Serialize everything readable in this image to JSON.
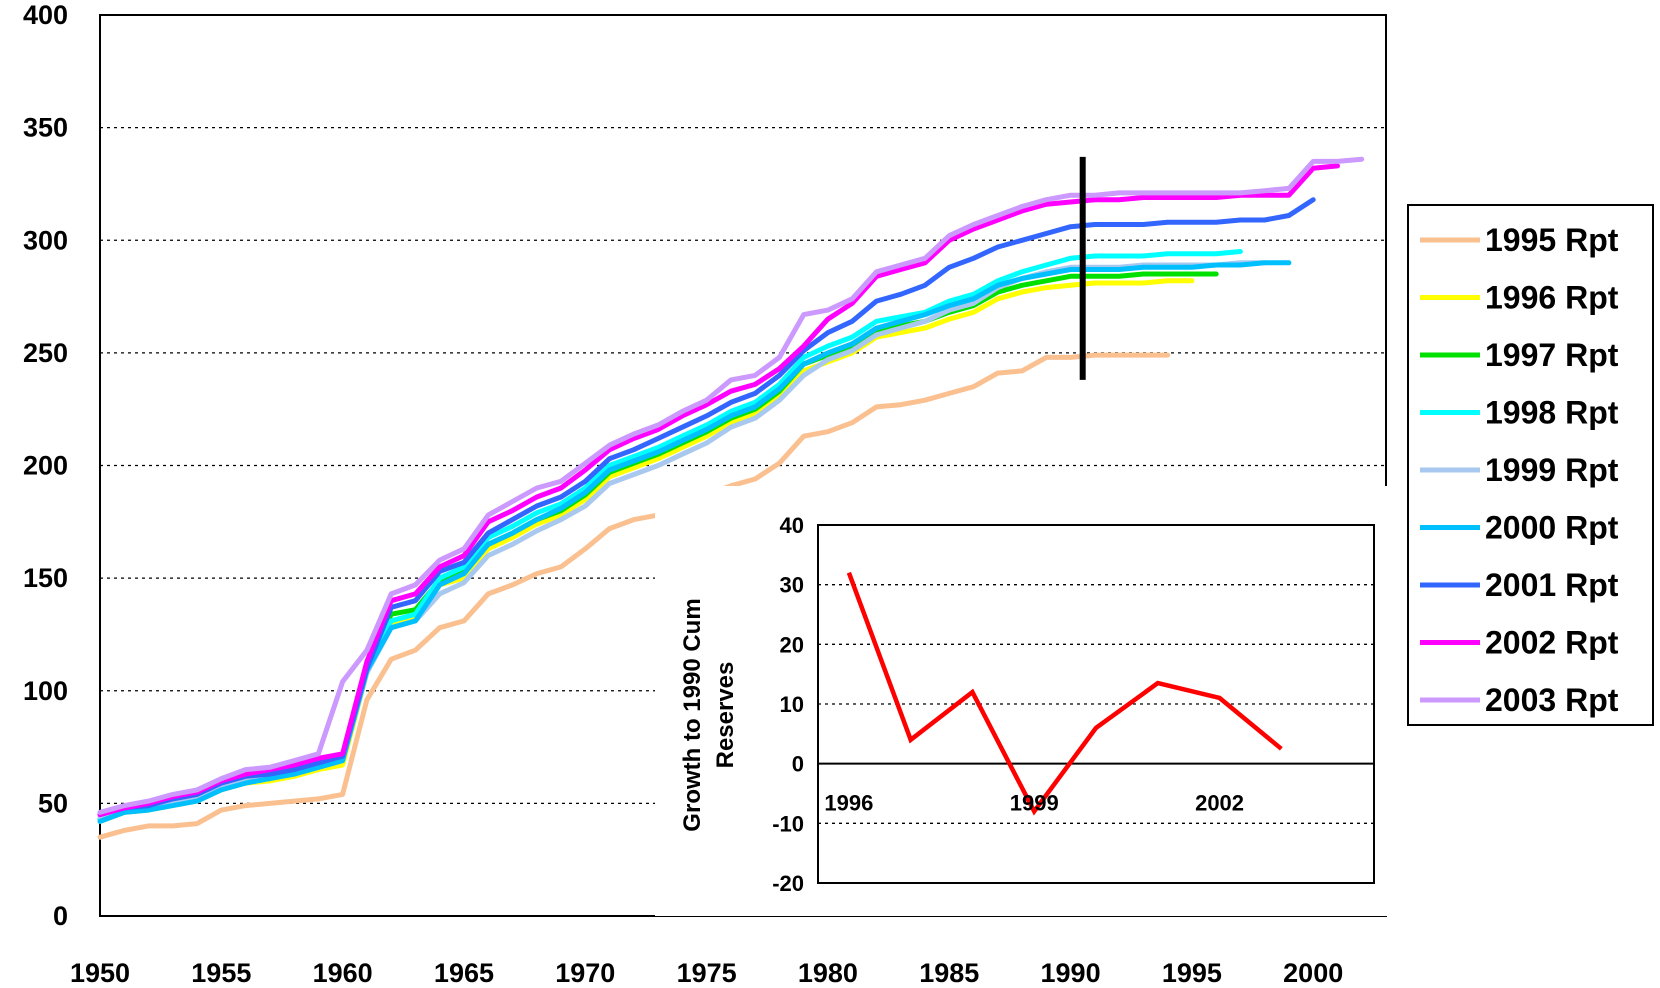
{
  "chart_data": [
    {
      "type": "line",
      "title": "",
      "xlabel": "",
      "ylabel": "",
      "xlim": [
        1950,
        2003
      ],
      "ylim": [
        0,
        400
      ],
      "x_ticks": [
        "1950",
        "1955",
        "1960",
        "1965",
        "1970",
        "1975",
        "1980",
        "1985",
        "1990",
        "1995",
        "2000"
      ],
      "y_ticks": [
        "0",
        "50",
        "100",
        "150",
        "200",
        "250",
        "300",
        "350",
        "400"
      ],
      "grid": "horizontal dotted",
      "legend_position": "right",
      "marker_line_x": 1990.5,
      "marker_line_range": [
        238,
        337
      ],
      "series": [
        {
          "name": "1995 Rpt",
          "color": "#FAC090",
          "x": [
            1950,
            1951,
            1952,
            1953,
            1954,
            1955,
            1956,
            1957,
            1958,
            1959,
            1960,
            1961,
            1962,
            1963,
            1964,
            1965,
            1966,
            1967,
            1968,
            1969,
            1970,
            1971,
            1972,
            1973,
            1974,
            1975,
            1976,
            1977,
            1978,
            1979,
            1980,
            1981,
            1982,
            1983,
            1984,
            1985,
            1986,
            1987,
            1988,
            1989,
            1990,
            1991,
            1992,
            1993,
            1994
          ],
          "y": [
            35,
            38,
            40,
            40,
            41,
            47,
            49,
            50,
            51,
            52,
            54,
            96,
            114,
            118,
            128,
            131,
            143,
            147,
            152,
            155,
            163,
            172,
            176,
            178,
            182,
            187,
            191,
            194,
            201,
            213,
            215,
            219,
            226,
            227,
            229,
            232,
            235,
            241,
            242,
            248,
            248,
            249,
            249,
            249,
            249
          ]
        },
        {
          "name": "1996 Rpt",
          "color": "#FFFF00",
          "x": [
            1950,
            1951,
            1952,
            1953,
            1954,
            1955,
            1956,
            1957,
            1958,
            1959,
            1960,
            1961,
            1962,
            1963,
            1964,
            1965,
            1966,
            1967,
            1968,
            1969,
            1970,
            1971,
            1972,
            1973,
            1974,
            1975,
            1976,
            1977,
            1978,
            1979,
            1980,
            1981,
            1982,
            1983,
            1984,
            1985,
            1986,
            1987,
            1988,
            1989,
            1990,
            1991,
            1992,
            1993,
            1994,
            1995
          ],
          "y": [
            42,
            46,
            47,
            49,
            51,
            56,
            59,
            60,
            62,
            65,
            67,
            108,
            130,
            133,
            147,
            150,
            163,
            168,
            174,
            178,
            185,
            195,
            199,
            203,
            208,
            213,
            219,
            223,
            231,
            242,
            246,
            250,
            257,
            259,
            261,
            265,
            268,
            274,
            277,
            279,
            280,
            281,
            281,
            281,
            282,
            282
          ]
        },
        {
          "name": "1997 Rpt",
          "color": "#00E000",
          "x": [
            1950,
            1951,
            1952,
            1953,
            1954,
            1955,
            1956,
            1957,
            1958,
            1959,
            1960,
            1961,
            1962,
            1963,
            1964,
            1965,
            1966,
            1967,
            1968,
            1969,
            1970,
            1971,
            1972,
            1973,
            1974,
            1975,
            1976,
            1977,
            1978,
            1979,
            1980,
            1981,
            1982,
            1983,
            1984,
            1985,
            1986,
            1987,
            1988,
            1989,
            1990,
            1991,
            1992,
            1993,
            1994,
            1995,
            1996
          ],
          "y": [
            43,
            47,
            48,
            50,
            52,
            57,
            60,
            61,
            63,
            66,
            69,
            110,
            134,
            136,
            149,
            153,
            165,
            170,
            176,
            180,
            187,
            197,
            201,
            205,
            210,
            215,
            221,
            225,
            233,
            245,
            249,
            253,
            260,
            262,
            264,
            268,
            271,
            277,
            280,
            282,
            284,
            284,
            284,
            285,
            285,
            285,
            285
          ]
        },
        {
          "name": "1998 Rpt",
          "color": "#00FFFF",
          "x": [
            1950,
            1951,
            1952,
            1953,
            1954,
            1955,
            1956,
            1957,
            1958,
            1959,
            1960,
            1961,
            1962,
            1963,
            1964,
            1965,
            1966,
            1967,
            1968,
            1969,
            1970,
            1971,
            1972,
            1973,
            1974,
            1975,
            1976,
            1977,
            1978,
            1979,
            1980,
            1981,
            1982,
            1983,
            1984,
            1985,
            1986,
            1987,
            1988,
            1989,
            1990,
            1991,
            1992,
            1993,
            1994,
            1995,
            1996,
            1997
          ],
          "y": [
            43,
            47,
            48,
            51,
            53,
            58,
            61,
            62,
            64,
            67,
            71,
            111,
            131,
            134,
            150,
            155,
            168,
            173,
            179,
            183,
            190,
            200,
            204,
            208,
            213,
            218,
            224,
            228,
            236,
            248,
            253,
            257,
            264,
            266,
            268,
            273,
            276,
            282,
            286,
            289,
            292,
            293,
            293,
            293,
            294,
            294,
            294,
            295
          ]
        },
        {
          "name": "1999 Rpt",
          "color": "#A8C8F0",
          "x": [
            1950,
            1951,
            1952,
            1953,
            1954,
            1955,
            1956,
            1957,
            1958,
            1959,
            1960,
            1961,
            1962,
            1963,
            1964,
            1965,
            1966,
            1967,
            1968,
            1969,
            1970,
            1971,
            1972,
            1973,
            1974,
            1975,
            1976,
            1977,
            1978,
            1979,
            1980,
            1981,
            1982,
            1983,
            1984,
            1985,
            1986,
            1987,
            1988,
            1989,
            1990,
            1991,
            1992,
            1993,
            1994,
            1995,
            1996,
            1997,
            1998
          ],
          "y": [
            44,
            47,
            48,
            50,
            52,
            57,
            60,
            61,
            63,
            66,
            69,
            108,
            128,
            131,
            143,
            148,
            160,
            165,
            171,
            176,
            182,
            192,
            196,
            200,
            205,
            210,
            217,
            221,
            229,
            240,
            247,
            251,
            258,
            261,
            264,
            269,
            272,
            279,
            283,
            286,
            288,
            288,
            288,
            289,
            289,
            289,
            289,
            290,
            290
          ]
        },
        {
          "name": "2000 Rpt",
          "color": "#00BFFF",
          "x": [
            1950,
            1951,
            1952,
            1953,
            1954,
            1955,
            1956,
            1957,
            1958,
            1959,
            1960,
            1961,
            1962,
            1963,
            1964,
            1965,
            1966,
            1967,
            1968,
            1969,
            1970,
            1971,
            1972,
            1973,
            1974,
            1975,
            1976,
            1977,
            1978,
            1979,
            1980,
            1981,
            1982,
            1983,
            1984,
            1985,
            1986,
            1987,
            1988,
            1989,
            1990,
            1991,
            1992,
            1993,
            1994,
            1995,
            1996,
            1997,
            1998,
            1999
          ],
          "y": [
            42,
            46,
            47,
            49,
            51,
            56,
            59,
            61,
            63,
            66,
            69,
            109,
            128,
            131,
            147,
            152,
            165,
            170,
            176,
            181,
            188,
            198,
            202,
            206,
            211,
            216,
            222,
            226,
            234,
            245,
            250,
            254,
            261,
            264,
            267,
            271,
            274,
            280,
            283,
            285,
            287,
            287,
            287,
            288,
            288,
            288,
            289,
            289,
            290,
            290
          ]
        },
        {
          "name": "2001 Rpt",
          "color": "#3366FF",
          "x": [
            1950,
            1951,
            1952,
            1953,
            1954,
            1955,
            1956,
            1957,
            1958,
            1959,
            1960,
            1961,
            1962,
            1963,
            1964,
            1965,
            1966,
            1967,
            1968,
            1969,
            1970,
            1971,
            1972,
            1973,
            1974,
            1975,
            1976,
            1977,
            1978,
            1979,
            1980,
            1981,
            1982,
            1983,
            1984,
            1985,
            1986,
            1987,
            1988,
            1989,
            1990,
            1991,
            1992,
            1993,
            1994,
            1995,
            1996,
            1997,
            1998,
            1999,
            2000
          ],
          "y": [
            45,
            48,
            49,
            52,
            54,
            59,
            62,
            63,
            65,
            68,
            71,
            110,
            137,
            140,
            153,
            157,
            170,
            176,
            182,
            186,
            193,
            203,
            207,
            212,
            217,
            222,
            228,
            232,
            240,
            251,
            259,
            264,
            273,
            276,
            280,
            288,
            292,
            297,
            300,
            303,
            306,
            307,
            307,
            307,
            308,
            308,
            308,
            309,
            309,
            311,
            318
          ]
        },
        {
          "name": "2002 Rpt",
          "color": "#FF00FF",
          "x": [
            1950,
            1951,
            1952,
            1953,
            1954,
            1955,
            1956,
            1957,
            1958,
            1959,
            1960,
            1961,
            1962,
            1963,
            1964,
            1965,
            1966,
            1967,
            1968,
            1969,
            1970,
            1971,
            1972,
            1973,
            1974,
            1975,
            1976,
            1977,
            1978,
            1979,
            1980,
            1981,
            1982,
            1983,
            1984,
            1985,
            1986,
            1987,
            1988,
            1989,
            1990,
            1991,
            1992,
            1993,
            1994,
            1995,
            1996,
            1997,
            1998,
            1999,
            2000,
            2001
          ],
          "y": [
            45,
            48,
            50,
            53,
            55,
            60,
            63,
            65,
            67,
            70,
            72,
            113,
            140,
            143,
            155,
            160,
            175,
            180,
            186,
            190,
            198,
            207,
            212,
            216,
            222,
            227,
            233,
            236,
            243,
            253,
            265,
            272,
            284,
            287,
            290,
            300,
            305,
            309,
            313,
            316,
            317,
            318,
            318,
            319,
            319,
            319,
            319,
            320,
            320,
            320,
            332,
            333
          ]
        },
        {
          "name": "2003 Rpt",
          "color": "#CC99FF",
          "x": [
            1950,
            1951,
            1952,
            1953,
            1954,
            1955,
            1956,
            1957,
            1958,
            1959,
            1960,
            1961,
            1962,
            1963,
            1964,
            1965,
            1966,
            1967,
            1968,
            1969,
            1970,
            1971,
            1972,
            1973,
            1974,
            1975,
            1976,
            1977,
            1978,
            1979,
            1980,
            1981,
            1982,
            1983,
            1984,
            1985,
            1986,
            1987,
            1988,
            1989,
            1990,
            1991,
            1992,
            1993,
            1994,
            1995,
            1996,
            1997,
            1998,
            1999,
            2000,
            2001,
            2002
          ],
          "y": [
            46,
            49,
            51,
            54,
            56,
            61,
            65,
            66,
            69,
            72,
            104,
            118,
            143,
            147,
            158,
            163,
            178,
            184,
            190,
            193,
            201,
            209,
            214,
            218,
            224,
            229,
            238,
            240,
            248,
            267,
            269,
            274,
            286,
            289,
            292,
            302,
            307,
            311,
            315,
            318,
            320,
            320,
            321,
            321,
            321,
            321,
            321,
            321,
            322,
            323,
            335,
            335,
            336
          ]
        }
      ]
    },
    {
      "type": "line",
      "title": "",
      "xlabel": "",
      "ylabel": "Growth to 1990 Cum Reserves",
      "ylabel_lines": [
        "Growth to 1990 Cum",
        "Reserves"
      ],
      "xlim": [
        1995.5,
        2004.5
      ],
      "ylim": [
        -20,
        40
      ],
      "x_ticks": [
        "1996",
        "1999",
        "2002"
      ],
      "y_ticks": [
        "-20",
        "-10",
        "0",
        "10",
        "20",
        "30",
        "40"
      ],
      "grid": "horizontal dotted",
      "series": [
        {
          "name": "",
          "color": "#FF0000",
          "x": [
            1996,
            1997,
            1998,
            1999,
            2000,
            2001,
            2002,
            2003
          ],
          "y": [
            32,
            4,
            12,
            -8,
            6,
            13.5,
            11,
            2.5
          ]
        }
      ]
    }
  ]
}
